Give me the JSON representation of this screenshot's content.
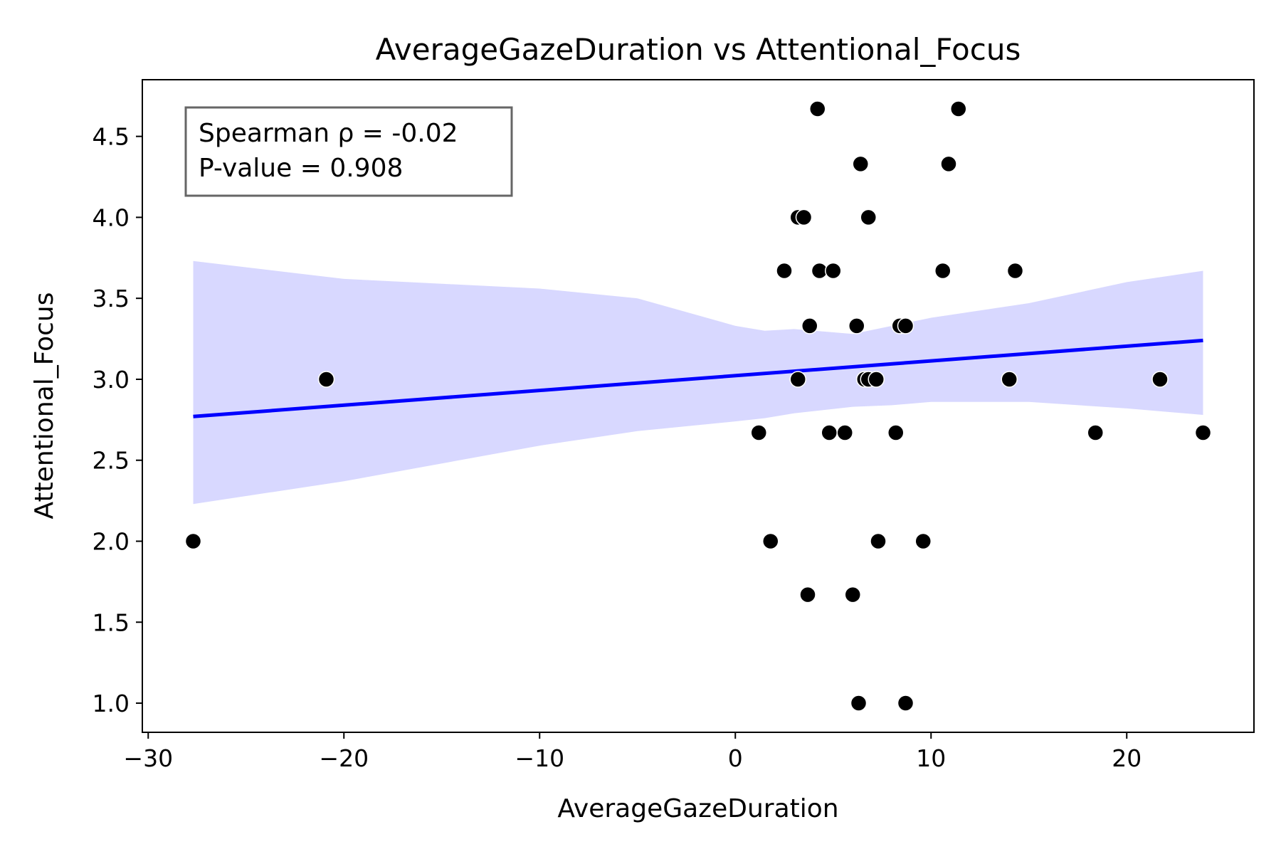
{
  "chart_data": {
    "type": "scatter",
    "title": "AverageGazeDuration vs Attentional_Focus",
    "xlabel": "AverageGazeDuration",
    "ylabel": "Attentional_Focus",
    "xlim": [
      -30.3,
      26.5
    ],
    "ylim": [
      0.82,
      4.85
    ],
    "x_ticks": [
      -30,
      -20,
      -10,
      0,
      10,
      20
    ],
    "x_tick_labels": [
      "−30",
      "−20",
      "−10",
      "0",
      "10",
      "20"
    ],
    "y_ticks": [
      1.0,
      1.5,
      2.0,
      2.5,
      3.0,
      3.5,
      4.0,
      4.5
    ],
    "y_tick_labels": [
      "1.0",
      "1.5",
      "2.0",
      "2.5",
      "3.0",
      "3.5",
      "4.0",
      "4.5"
    ],
    "grid": false,
    "annotation": {
      "lines": [
        "Spearman ρ = -0.02",
        "P-value = 0.908"
      ]
    },
    "series": [
      {
        "type": "scatter",
        "color": "#000000",
        "points": [
          {
            "x": -27.7,
            "y": 2.0
          },
          {
            "x": -20.9,
            "y": 3.0
          },
          {
            "x": 1.2,
            "y": 2.67
          },
          {
            "x": 1.8,
            "y": 2.0
          },
          {
            "x": 2.5,
            "y": 3.67
          },
          {
            "x": 3.2,
            "y": 4.0
          },
          {
            "x": 3.5,
            "y": 4.0
          },
          {
            "x": 3.2,
            "y": 3.0
          },
          {
            "x": 3.7,
            "y": 1.67
          },
          {
            "x": 3.8,
            "y": 3.33
          },
          {
            "x": 4.2,
            "y": 4.67
          },
          {
            "x": 4.3,
            "y": 3.67
          },
          {
            "x": 4.8,
            "y": 2.67
          },
          {
            "x": 5.0,
            "y": 3.67
          },
          {
            "x": 5.6,
            "y": 2.67
          },
          {
            "x": 6.0,
            "y": 1.67
          },
          {
            "x": 6.2,
            "y": 3.33
          },
          {
            "x": 6.3,
            "y": 1.0
          },
          {
            "x": 6.4,
            "y": 4.33
          },
          {
            "x": 6.6,
            "y": 3.0
          },
          {
            "x": 6.8,
            "y": 3.0
          },
          {
            "x": 6.8,
            "y": 4.0
          },
          {
            "x": 7.2,
            "y": 3.0
          },
          {
            "x": 7.3,
            "y": 2.0
          },
          {
            "x": 8.2,
            "y": 2.67
          },
          {
            "x": 8.4,
            "y": 3.33
          },
          {
            "x": 8.7,
            "y": 3.33
          },
          {
            "x": 8.7,
            "y": 1.0
          },
          {
            "x": 9.6,
            "y": 2.0
          },
          {
            "x": 10.6,
            "y": 3.67
          },
          {
            "x": 10.9,
            "y": 4.33
          },
          {
            "x": 11.4,
            "y": 4.67
          },
          {
            "x": 14.0,
            "y": 3.0
          },
          {
            "x": 14.3,
            "y": 3.67
          },
          {
            "x": 18.4,
            "y": 2.67
          },
          {
            "x": 21.7,
            "y": 3.0
          },
          {
            "x": 23.9,
            "y": 2.67
          }
        ]
      },
      {
        "type": "line",
        "color": "#0000ff",
        "x": [
          -27.7,
          23.9
        ],
        "y": [
          2.77,
          3.24
        ]
      },
      {
        "type": "band",
        "color": "#d8d8ff",
        "x": [
          -27.7,
          -20,
          -10,
          -5,
          0,
          1.5,
          3,
          6,
          8,
          10,
          15,
          20,
          23.9
        ],
        "lower": [
          2.23,
          2.37,
          2.59,
          2.68,
          2.74,
          2.76,
          2.79,
          2.83,
          2.84,
          2.86,
          2.86,
          2.82,
          2.78
        ],
        "upper": [
          3.73,
          3.62,
          3.56,
          3.5,
          3.33,
          3.3,
          3.31,
          3.28,
          3.33,
          3.38,
          3.47,
          3.6,
          3.67
        ]
      }
    ]
  }
}
